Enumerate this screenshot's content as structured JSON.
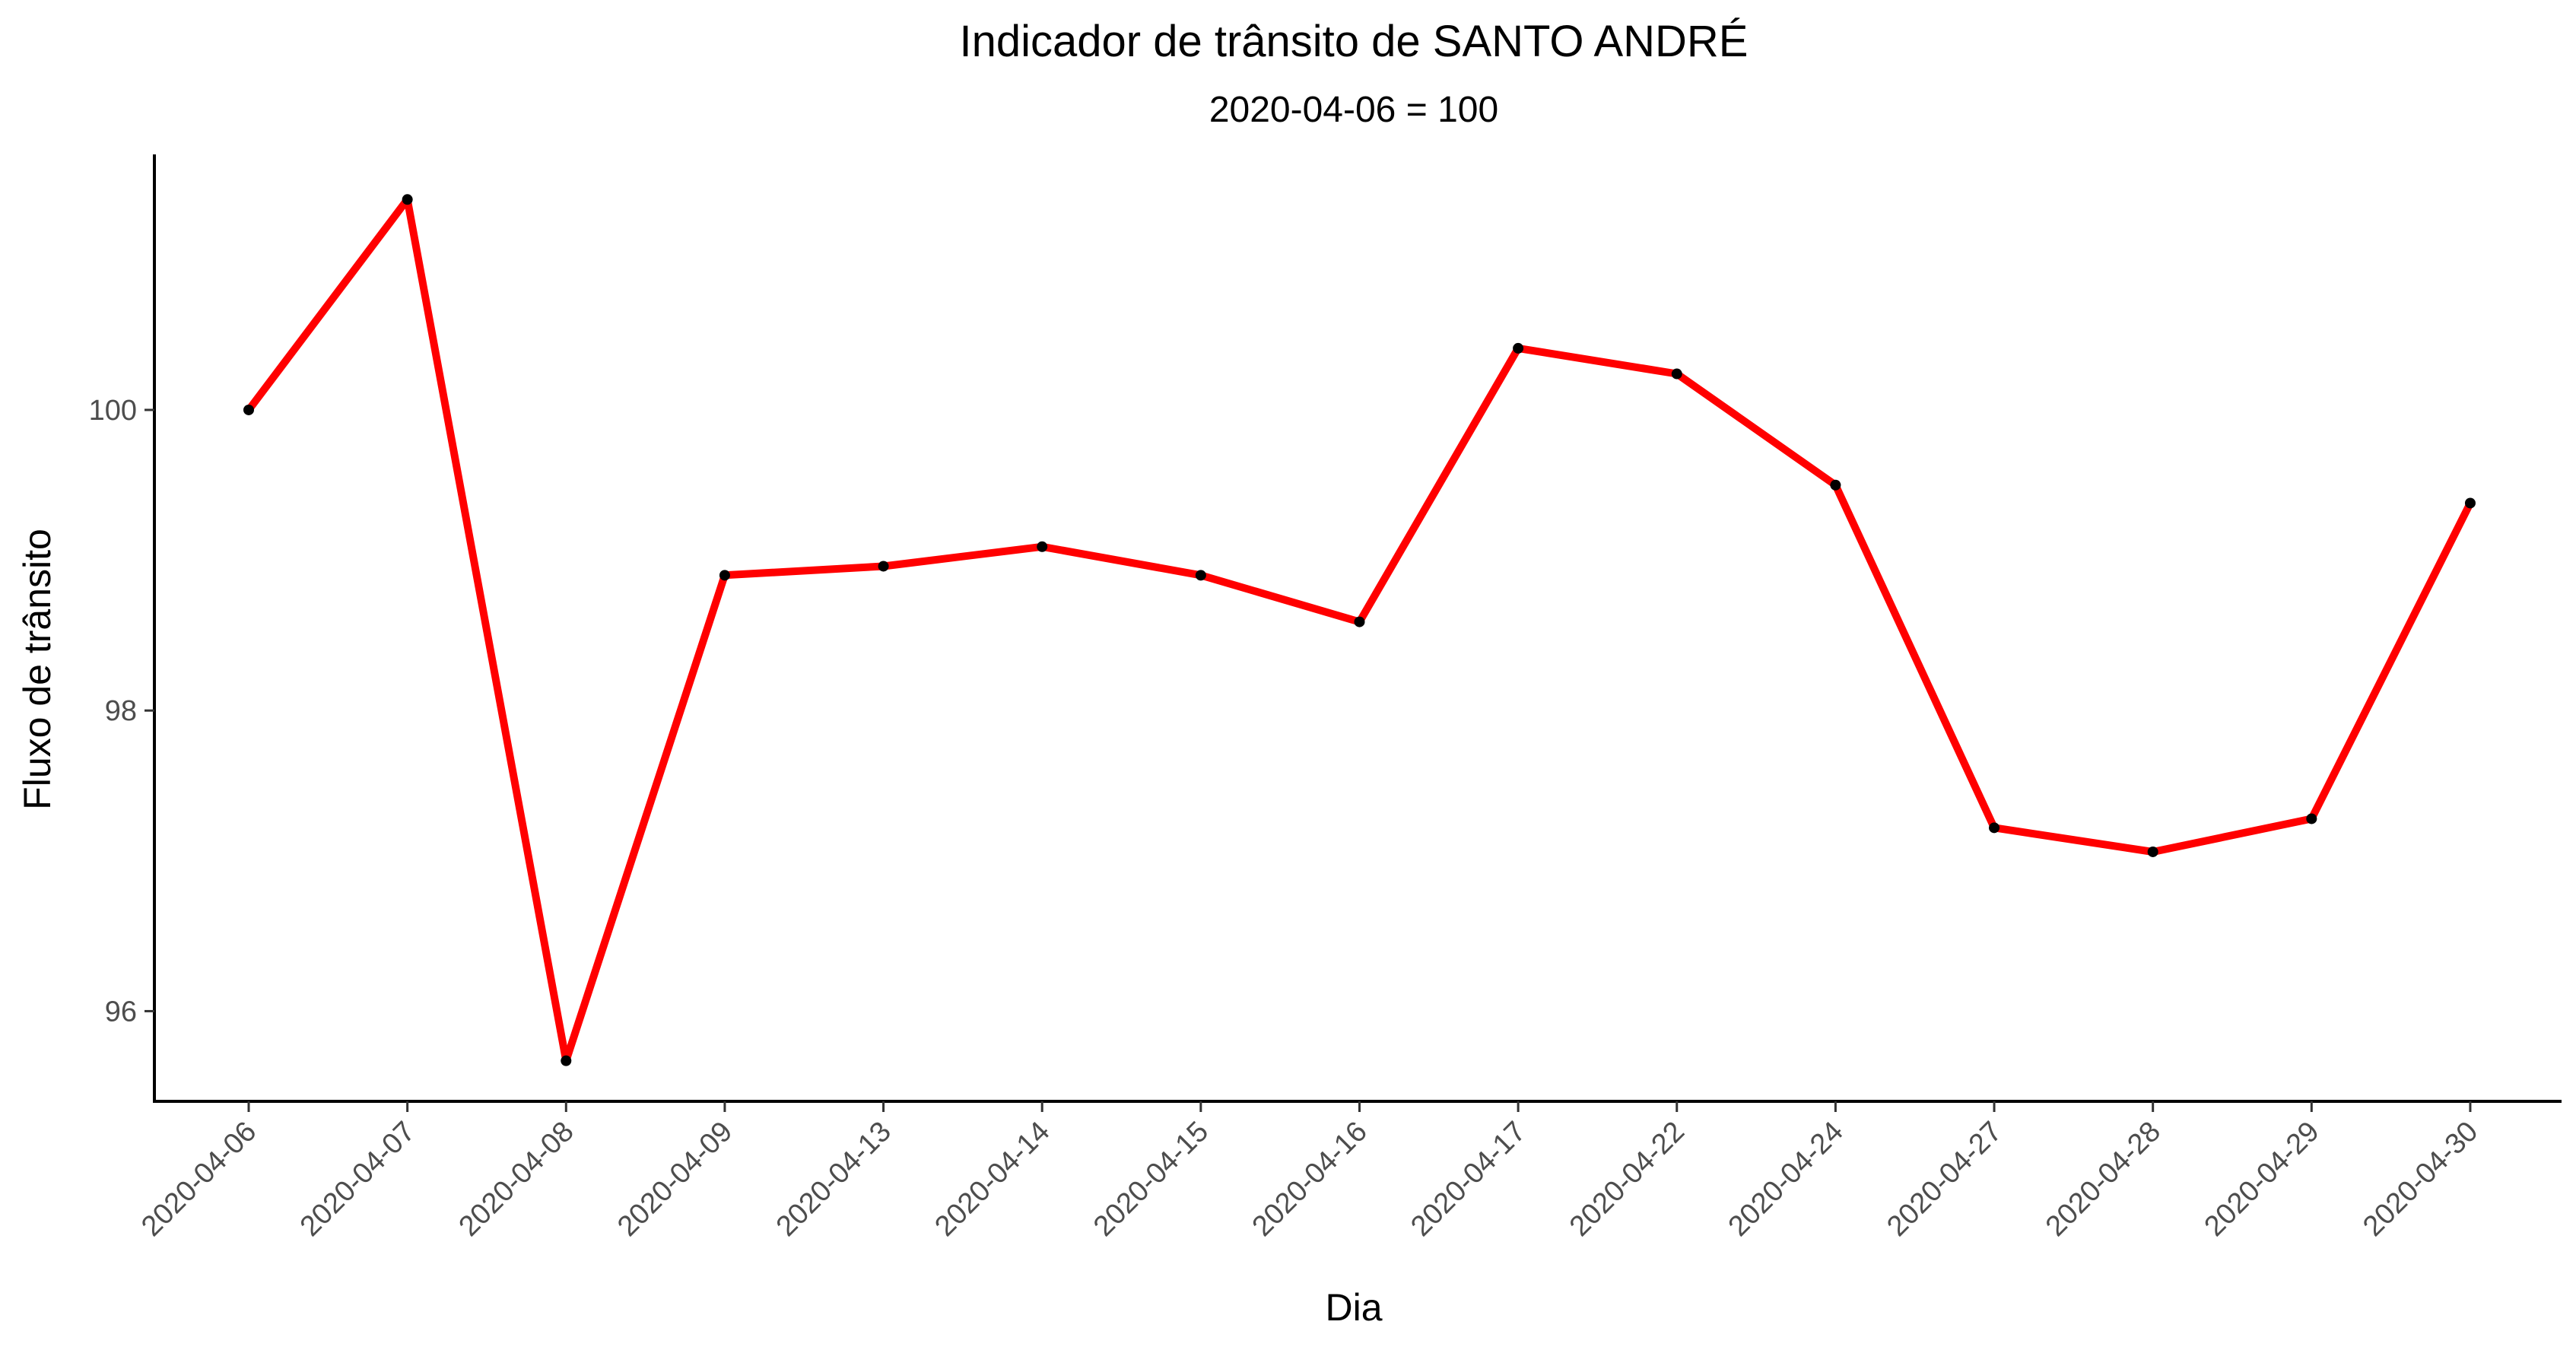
{
  "chart_data": {
    "type": "line",
    "title": "Indicador de trânsito de SANTO ANDRÉ",
    "subtitle": "2020-04-06 = 100",
    "xlabel": "Dia",
    "ylabel": "Fluxo de trânsito",
    "x": [
      "2020-04-06",
      "2020-04-07",
      "2020-04-08",
      "2020-04-09",
      "2020-04-13",
      "2020-04-14",
      "2020-04-15",
      "2020-04-16",
      "2020-04-17",
      "2020-04-22",
      "2020-04-24",
      "2020-04-27",
      "2020-04-28",
      "2020-04-29",
      "2020-04-30"
    ],
    "series": [
      {
        "values": [
          100.0,
          101.4,
          95.67,
          98.9,
          98.96,
          99.09,
          98.9,
          98.59,
          100.41,
          100.24,
          99.5,
          97.22,
          97.06,
          97.28,
          99.38
        ]
      }
    ],
    "yticks": [
      96,
      98,
      100
    ],
    "ylim": [
      95.4,
      101.7
    ],
    "grid": false,
    "legend": "none",
    "colors": {
      "line": "#ff0000",
      "points": "#000000",
      "axis": "#000000",
      "tick_text": "#4d4d4d"
    }
  }
}
